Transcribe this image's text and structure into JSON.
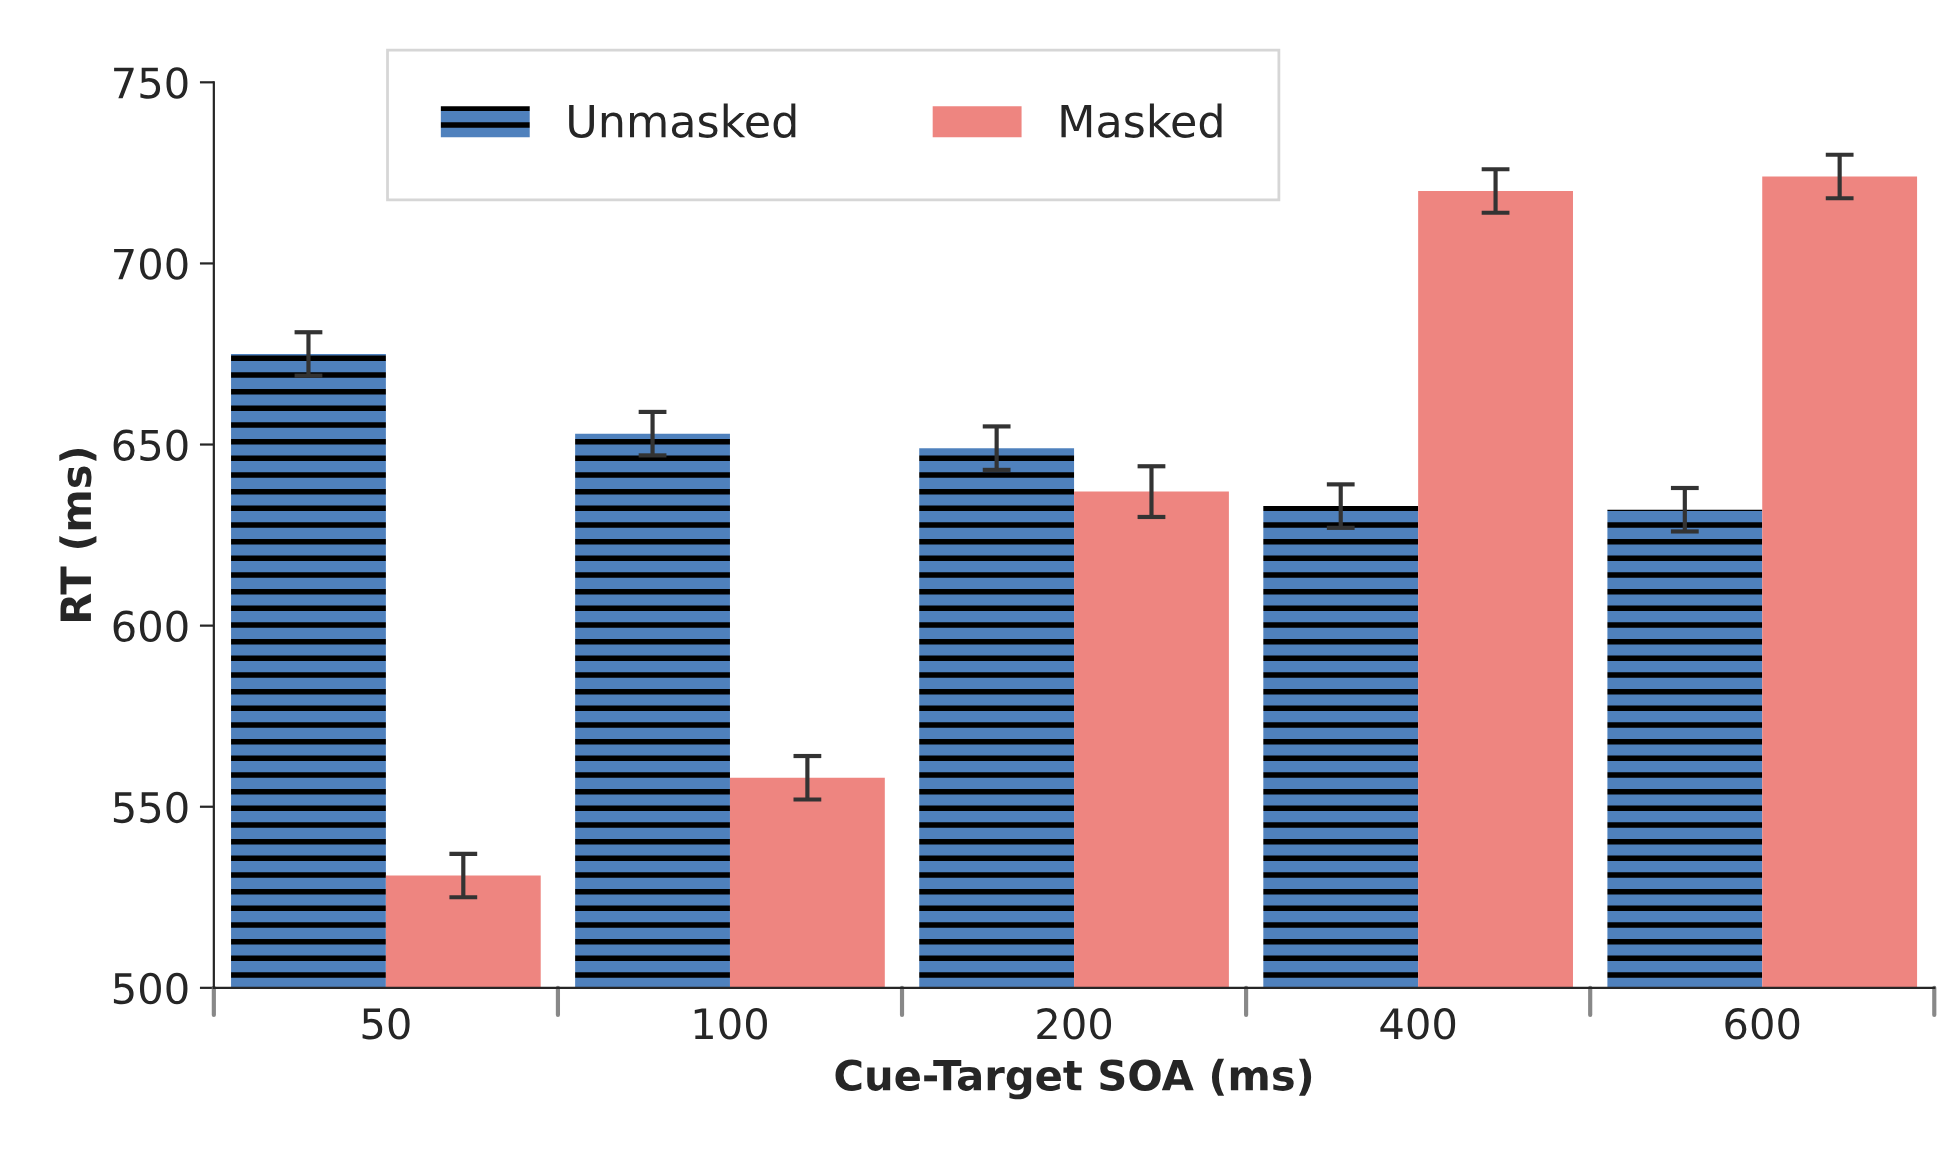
{
  "chart_data": {
    "type": "bar",
    "xlabel": "Cue-Target SOA (ms)",
    "ylabel": "RT (ms)",
    "categories": [
      "50",
      "100",
      "200",
      "400",
      "600"
    ],
    "series": [
      {
        "name": "Unmasked",
        "color": "#4f81bd",
        "values": [
          675,
          653,
          649,
          633,
          632
        ],
        "errors": [
          6,
          6,
          6,
          6,
          6
        ]
      },
      {
        "name": "Masked",
        "color": "#ee8580",
        "values": [
          531,
          558,
          637,
          720,
          724
        ],
        "errors": [
          6,
          6,
          7,
          6,
          6
        ]
      }
    ],
    "ylim": [
      500,
      750
    ],
    "yticks": [
      500,
      550,
      600,
      650,
      700,
      750
    ],
    "grid": false,
    "legend": "top"
  }
}
